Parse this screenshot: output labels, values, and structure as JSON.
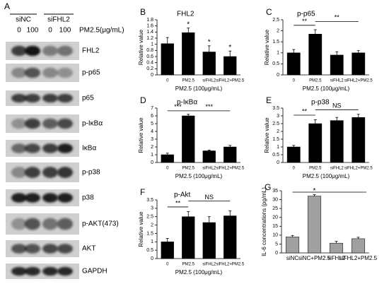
{
  "blot_panel": {
    "panel": "A",
    "groups": [
      "siNC",
      "siFHL2"
    ],
    "lanes": [
      "0",
      "100",
      "0",
      "100"
    ],
    "treatment": "PM2.5(μg/mL)",
    "bands": [
      "FHL2",
      "p-p65",
      "p65",
      "p-IκBα",
      "IκBα",
      "p-p38",
      "p38",
      "p-AKT(473)",
      "AKT",
      "GAPDH"
    ]
  },
  "chart_data": [
    {
      "type": "bar",
      "panel": "B",
      "title": "FHL2",
      "ylabel": "Relative value",
      "xlabel": "PM2.5 (100μg/mL)",
      "categories": [
        "0",
        "PM2.5",
        "siFHL2",
        "siFHL2+PM2.5"
      ],
      "values": [
        1.02,
        1.38,
        0.75,
        0.6
      ],
      "errors": [
        0.2,
        0.15,
        0.2,
        0.18
      ],
      "bar_labels": [
        null,
        "*",
        "*",
        "*"
      ],
      "annotations": [],
      "color": "#000000",
      "ylim": [
        0,
        1.8
      ],
      "yticks": [
        0,
        0.2,
        0.4,
        0.6,
        0.8,
        1,
        1.2,
        1.4,
        1.6,
        1.8
      ]
    },
    {
      "type": "bar",
      "panel": "C",
      "title": "p-p65",
      "ylabel": "Relative value",
      "xlabel": "PM2.5 (100μg/mL)",
      "categories": [
        "0",
        "PM2.5",
        "siFHL2",
        "siFHL2+PM2.5"
      ],
      "values": [
        1.0,
        1.85,
        0.9,
        1.0
      ],
      "errors": [
        0.15,
        0.2,
        0.15,
        0.1
      ],
      "bar_labels": [
        null,
        null,
        null,
        null
      ],
      "annotations": [
        "**",
        "**"
      ],
      "color": "#000000",
      "ylim": [
        0,
        2.5
      ],
      "yticks": [
        0,
        0.5,
        1,
        1.5,
        2,
        2.5
      ]
    },
    {
      "type": "bar",
      "panel": "D",
      "title": "p-IκBα",
      "ylabel": "Relative value",
      "xlabel": "PM2.5 (100μg/mL)",
      "categories": [
        "0",
        "PM2.5",
        "siFHL2",
        "siFHL2+PM2.5"
      ],
      "values": [
        1,
        6,
        1.5,
        2
      ],
      "errors": [
        0.2,
        0.2,
        0.1,
        0.2
      ],
      "bar_labels": [
        null,
        null,
        null,
        null
      ],
      "annotations": [
        "***",
        "***"
      ],
      "color": "#000000",
      "ylim": [
        0,
        7
      ],
      "yticks": [
        0,
        1,
        2,
        3,
        4,
        5,
        6,
        7
      ]
    },
    {
      "type": "bar",
      "panel": "E",
      "title": "p-p38",
      "ylabel": "Relative value",
      "xlabel": "PM2.5 (100μg/mL)",
      "categories": [
        "0",
        "PM2.5",
        "siFHL2",
        "siFHL2+PM2.5"
      ],
      "values": [
        1,
        2.5,
        2.7,
        2.9
      ],
      "errors": [
        0.1,
        0.25,
        0.2,
        0.2
      ],
      "bar_labels": [
        null,
        null,
        null,
        null
      ],
      "annotations": [
        "**",
        "NS"
      ],
      "color": "#000000",
      "ylim": [
        0,
        3.5
      ],
      "yticks": [
        0,
        0.5,
        1,
        1.5,
        2,
        2.5,
        3,
        3.5
      ]
    },
    {
      "type": "bar",
      "panel": "F",
      "title": "p-Akt",
      "ylabel": "Relative value",
      "xlabel": "PM2.5 (100μg/mL)",
      "categories": [
        "0",
        "PM2.5",
        "siFHL2",
        "siFHL2+PM2.5"
      ],
      "values": [
        1,
        2.5,
        2.15,
        2.55
      ],
      "errors": [
        0.2,
        0.3,
        0.35,
        0.3
      ],
      "bar_labels": [
        null,
        null,
        null,
        null
      ],
      "annotations": [
        "**",
        "NS"
      ],
      "color": "#000000",
      "ylim": [
        0,
        3.5
      ],
      "yticks": [
        0,
        0.5,
        1,
        1.5,
        2,
        2.5,
        3,
        3.5
      ]
    },
    {
      "type": "bar",
      "panel": "G",
      "title": null,
      "ylabel": "IL-6 concentrations (pg/mL)",
      "xlabel": null,
      "categories": [
        "siNC",
        "siNC+PM2.5",
        "siFHL2",
        "siFHL2+PM2.5"
      ],
      "values": [
        9,
        32,
        5.5,
        8
      ],
      "errors": [
        0.8,
        0.8,
        1,
        0.8
      ],
      "bar_labels": [
        null,
        "*",
        null,
        null
      ],
      "annotations": [],
      "color": "#a0a0a0",
      "ylim": [
        0,
        35
      ],
      "yticks": [
        0,
        5,
        10,
        15,
        20,
        25,
        30,
        35
      ]
    }
  ]
}
